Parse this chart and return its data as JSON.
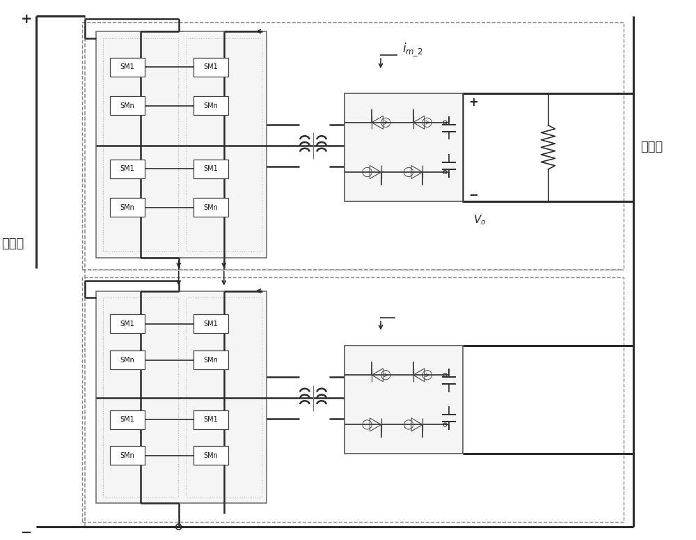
{
  "bg_color": "#ffffff",
  "lc": "#2a2a2a",
  "dc": "#888888",
  "label_low": "低压侧",
  "label_high": "高压侧",
  "label_plus": "+",
  "label_minus": "−",
  "label_vo": "V",
  "label_vo_sub": "o"
}
